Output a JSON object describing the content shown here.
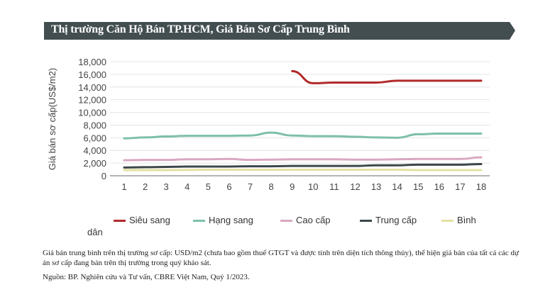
{
  "chart_data": {
    "type": "line",
    "title": "Thị trường Căn Hộ Bán TP.HCM, Giá Bán Sơ Cấp Trung Bình",
    "xlabel": "",
    "ylabel": "Giá bán sơ cấp(US$/m2)",
    "x": [
      1,
      2,
      3,
      4,
      5,
      6,
      7,
      8,
      9,
      10,
      11,
      12,
      13,
      14,
      15,
      16,
      17,
      18
    ],
    "ylim": [
      0,
      18000
    ],
    "yticks": [
      0,
      2000,
      4000,
      6000,
      8000,
      10000,
      12000,
      14000,
      16000,
      18000
    ],
    "ytick_labels": [
      "0",
      "2,000",
      "4,000",
      "6,000",
      "8,000",
      "10,000",
      "12,000",
      "14,000",
      "16,000",
      "18,000"
    ],
    "grid": "horizontal",
    "legend_position": "bottom",
    "series": [
      {
        "name": "Siêu sang",
        "color": "#b22a2a",
        "values": [
          null,
          null,
          null,
          null,
          null,
          null,
          null,
          null,
          16500,
          14600,
          14700,
          14700,
          14700,
          15000,
          15000,
          15000,
          15000,
          15000
        ]
      },
      {
        "name": "Hạng sang",
        "color": "#7dbfaa",
        "values": [
          5900,
          6050,
          6200,
          6300,
          6300,
          6300,
          6350,
          6800,
          6350,
          6250,
          6250,
          6150,
          6050,
          6000,
          6550,
          6650,
          6650,
          6650
        ]
      },
      {
        "name": "Cao cấp",
        "color": "#d9a7c1",
        "values": [
          2450,
          2500,
          2500,
          2600,
          2600,
          2650,
          2500,
          2550,
          2600,
          2600,
          2600,
          2550,
          2550,
          2600,
          2650,
          2650,
          2650,
          2900
        ]
      },
      {
        "name": "Trung cấp",
        "color": "#3c474a",
        "values": [
          1300,
          1350,
          1400,
          1450,
          1450,
          1450,
          1500,
          1500,
          1550,
          1550,
          1550,
          1550,
          1650,
          1650,
          1750,
          1750,
          1750,
          1850
        ]
      },
      {
        "name": "Bình dân",
        "color": "#e3e0a2",
        "values": [
          900,
          900,
          900,
          920,
          950,
          950,
          950,
          950,
          950,
          950,
          950,
          950,
          950,
          950,
          900,
          900,
          900,
          900
        ]
      }
    ]
  },
  "legend": {
    "label_binh": "Bình",
    "label_dan": "dân"
  },
  "notes": {
    "definition": "Giá bán trung bình trên thị trường sơ cấp: USD/m2 (chưa bao gồm thuế GTGT và được tính trên diện tích thông thủy), thể hiện giá bán của tất cả các dự án sơ cấp đang bán trên thị trường trong quý khảo sát.",
    "source": "Nguồn: BP. Nghiên cứu và Tư vấn, CBRE Việt Nam, Quý 1/2023."
  },
  "colors": {
    "banner": "#434e51"
  }
}
